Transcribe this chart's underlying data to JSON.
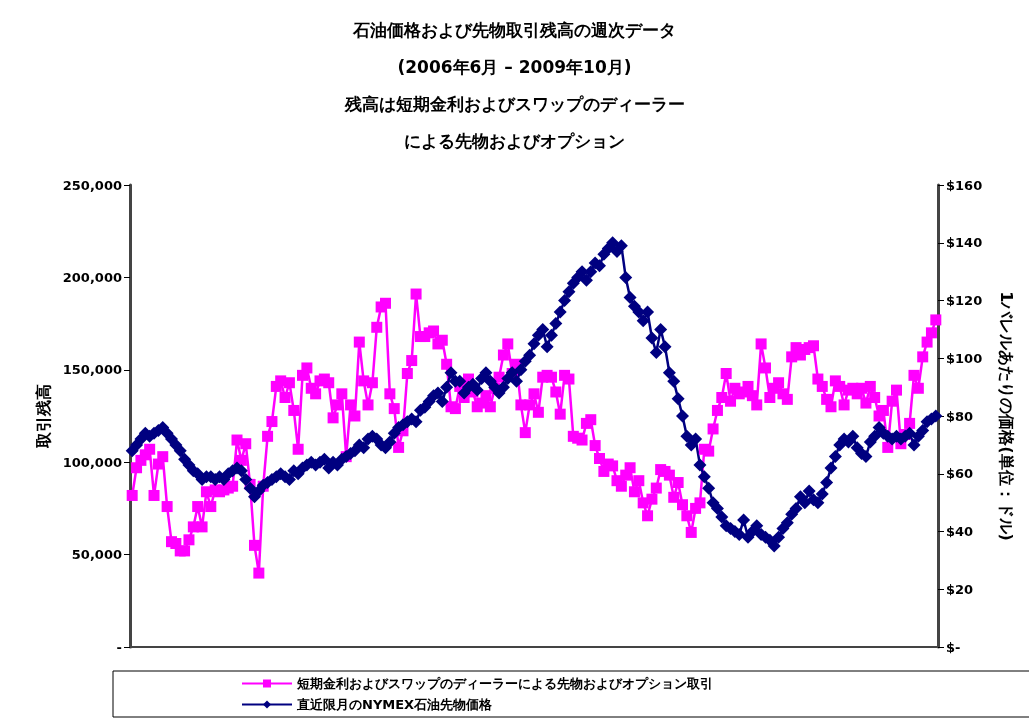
{
  "chart_data": {
    "type": "line",
    "title": "石油価格および先物取引残高の週次データ\n(2006年6月 – 2009年10月)",
    "subtitle": "残高は短期金利およびスワップのディーラーによる先物およびオプション",
    "ylabel": "取引残高",
    "y2label": "1バレルあたりの価格(単位：ドル)",
    "categories": [
      null,
      null,
      null,
      null,
      null,
      null,
      null,
      null,
      null,
      null,
      null,
      null,
      null,
      null,
      null,
      null,
      null,
      null,
      null,
      null,
      null,
      null,
      null,
      null,
      null,
      null,
      null,
      null,
      null,
      null,
      null,
      null,
      null,
      null,
      null,
      null,
      null,
      null,
      null,
      null,
      null,
      null,
      null,
      null,
      null,
      null,
      null,
      null,
      null,
      null,
      null,
      null,
      null,
      null,
      null,
      null,
      null,
      null,
      null,
      null,
      null,
      null,
      null,
      null,
      null,
      null,
      null,
      null,
      null,
      null,
      null,
      null,
      null,
      null,
      null,
      null,
      null,
      null,
      null,
      null,
      null,
      null,
      null,
      null,
      null,
      null,
      null,
      null,
      null,
      null,
      null,
      null,
      null,
      null,
      null,
      null,
      null,
      null,
      null,
      null,
      null,
      null,
      null,
      null,
      null,
      null,
      null,
      null,
      null,
      null,
      null,
      null,
      null,
      null,
      null,
      null,
      null,
      null,
      null,
      null,
      null,
      null,
      null,
      null,
      null,
      null,
      null,
      null,
      null,
      null,
      null,
      null,
      null,
      null,
      null,
      null,
      null,
      null,
      null,
      null,
      null,
      null,
      null,
      null,
      null,
      null,
      null,
      null,
      null,
      null,
      null,
      null,
      null,
      null,
      null,
      null,
      null,
      null,
      null,
      null,
      null,
      null,
      null,
      null,
      null,
      null,
      null,
      null,
      null,
      null,
      null,
      null,
      null,
      null,
      null,
      null,
      null,
      null,
      null,
      null,
      null,
      null,
      null,
      null,
      null
    ],
    "series": [
      {
        "name": "短期金利およびスワップのディーラーによる先物およびオプション取引",
        "color": "#ff00ff",
        "marker": "square",
        "values": [
          82000,
          97000,
          101000,
          104000,
          107000,
          82000,
          99000,
          103000,
          76000,
          57000,
          56000,
          52000,
          52000,
          58000,
          65000,
          76000,
          65000,
          84000,
          76000,
          85000,
          84000,
          85000,
          86000,
          87000,
          112000,
          101000,
          110000,
          88000,
          55000,
          40000,
          87000,
          114000,
          122000,
          141000,
          144000,
          135000,
          143000,
          128000,
          107000,
          147000,
          151000,
          140000,
          137000,
          144000,
          145000,
          143000,
          124000,
          131000,
          137000,
          103000,
          131000,
          125000,
          165000,
          144000,
          131000,
          143000,
          173000,
          184000,
          186000,
          137000,
          129000,
          108000,
          117000,
          148000,
          155000,
          191000,
          168000,
          168000,
          170000,
          171000,
          164000,
          166000,
          153000,
          130000,
          129000,
          141000,
          135000,
          145000,
          138000,
          130000,
          132000,
          136000,
          130000,
          140000,
          146000,
          158000,
          164000,
          148000,
          153000,
          131000,
          116000,
          131000,
          137000,
          127000,
          146000,
          147000,
          146000,
          138000,
          126000,
          147000,
          145000,
          114000,
          113000,
          112000,
          121000,
          123000,
          109000,
          102000,
          95000,
          99000,
          98000,
          90000,
          87000,
          93000,
          97000,
          84000,
          90000,
          78000,
          71000,
          80000,
          86000,
          96000,
          95000,
          93000,
          81000,
          89000,
          77000,
          71000,
          62000,
          75000,
          78000,
          107000,
          106000,
          118000,
          128000,
          135000,
          148000,
          133000,
          140000,
          137000,
          138000,
          141000,
          136000,
          131000,
          164000,
          151000,
          135000,
          140000,
          143000,
          137000,
          134000,
          157000,
          162000,
          158000,
          161000,
          162000,
          163000,
          145000,
          141000,
          134000,
          130000,
          144000,
          141000,
          131000,
          139000,
          140000,
          137000,
          140000,
          132000,
          141000,
          135000,
          125000,
          128000,
          108000,
          133000,
          139000,
          110000,
          115000,
          121000,
          147000,
          140000,
          157000,
          165000,
          170000,
          177000
        ]
      },
      {
        "name": "直近限月のNYMEX石油先物価格",
        "color": "#000080",
        "marker": "diamond",
        "axis": "y2",
        "values": [
          68,
          70,
          72,
          74,
          73,
          74,
          75,
          76,
          74,
          72,
          70,
          68,
          65,
          63,
          61,
          60,
          58,
          59,
          59,
          58,
          59,
          58,
          60,
          61,
          62,
          61,
          58,
          55,
          52,
          54,
          56,
          57,
          58,
          59,
          60,
          59,
          58,
          61,
          60,
          62,
          63,
          64,
          63,
          64,
          65,
          62,
          64,
          63,
          65,
          66,
          67,
          68,
          70,
          69,
          72,
          73,
          72,
          70,
          69,
          71,
          74,
          76,
          77,
          78,
          79,
          78,
          82,
          83,
          85,
          87,
          88,
          85,
          90,
          95,
          92,
          92,
          88,
          90,
          91,
          89,
          93,
          95,
          92,
          90,
          88,
          90,
          93,
          95,
          92,
          96,
          99,
          101,
          105,
          108,
          110,
          104,
          108,
          112,
          116,
          120,
          123,
          126,
          128,
          130,
          127,
          130,
          133,
          132,
          136,
          138,
          140,
          137,
          139,
          128,
          121,
          118,
          116,
          113,
          116,
          107,
          102,
          110,
          104,
          95,
          92,
          86,
          80,
          73,
          70,
          72,
          63,
          59,
          55,
          50,
          48,
          45,
          42,
          41,
          40,
          39,
          44,
          38,
          40,
          42,
          39,
          38,
          37,
          35,
          38,
          41,
          43,
          46,
          48,
          52,
          50,
          54,
          51,
          50,
          53,
          57,
          62,
          66,
          70,
          72,
          71,
          73,
          69,
          67,
          66,
          71,
          73,
          76,
          74,
          73,
          72,
          73,
          72,
          73,
          74,
          70,
          73,
          75,
          78,
          79,
          80
        ]
      }
    ],
    "ylim": [
      0,
      250000
    ],
    "yticks": [
      {
        "value": 0,
        "label": "-"
      },
      {
        "value": 50000,
        "label": "50,000"
      },
      {
        "value": 100000,
        "label": "100,000"
      },
      {
        "value": 150000,
        "label": "150,000"
      },
      {
        "value": 200000,
        "label": "200,000"
      },
      {
        "value": 250000,
        "label": "250,000"
      }
    ],
    "y2lim": [
      0,
      160
    ],
    "y2ticks": [
      {
        "value": 0,
        "label": "$-"
      },
      {
        "value": 20,
        "label": "$20"
      },
      {
        "value": 40,
        "label": "$40"
      },
      {
        "value": 60,
        "label": "$60"
      },
      {
        "value": 80,
        "label": "$80"
      },
      {
        "value": 100,
        "label": "$100"
      },
      {
        "value": 120,
        "label": "$120"
      },
      {
        "value": 140,
        "label": "$140"
      },
      {
        "value": 160,
        "label": "$160"
      }
    ],
    "tick_labels": "y",
    "legend": "bottom"
  }
}
